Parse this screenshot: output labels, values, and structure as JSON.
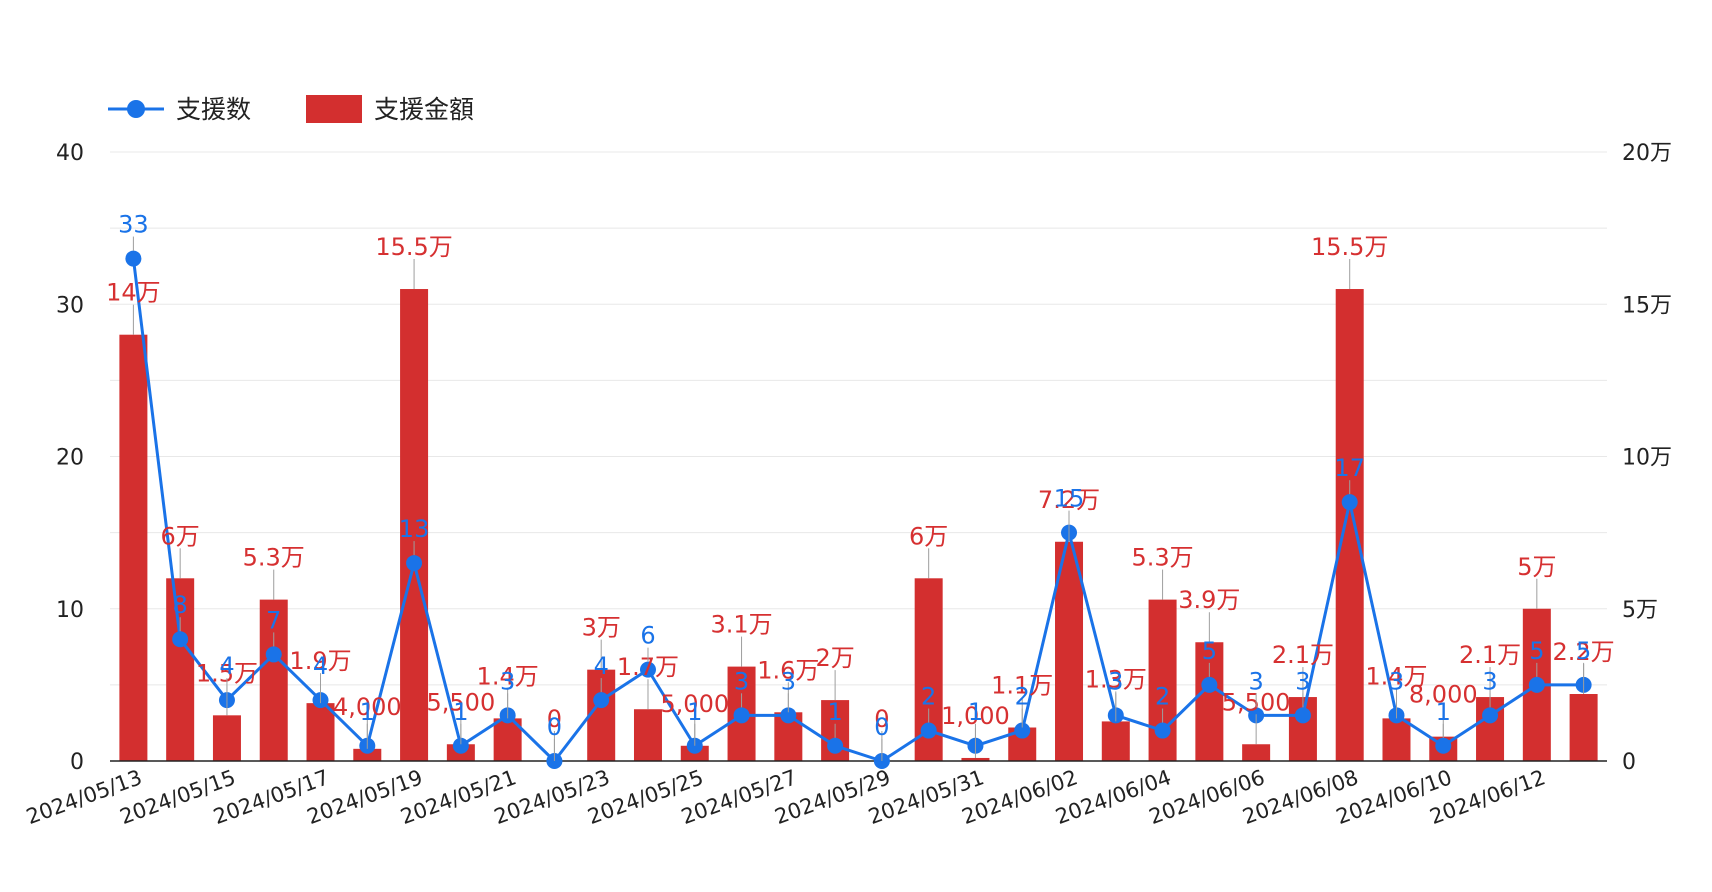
{
  "colors": {
    "count": "#1a73e8",
    "amount": "#d32f2f",
    "amount_label": "#d63031",
    "grid": "#e8e8e8",
    "axis": "#222222",
    "leader": "#9e9e9e"
  },
  "chart_data": {
    "type": "bar",
    "categories": [
      "2024/05/13",
      "2024/05/14",
      "2024/05/15",
      "2024/05/16",
      "2024/05/17",
      "2024/05/18",
      "2024/05/19",
      "2024/05/20",
      "2024/05/21",
      "2024/05/22",
      "2024/05/23",
      "2024/05/24",
      "2024/05/25",
      "2024/05/26",
      "2024/05/27",
      "2024/05/28",
      "2024/05/29",
      "2024/05/30",
      "2024/05/31",
      "2024/06/01",
      "2024/06/02",
      "2024/06/03",
      "2024/06/04",
      "2024/06/05",
      "2024/06/06",
      "2024/06/07",
      "2024/06/08",
      "2024/06/09",
      "2024/06/10",
      "2024/06/11",
      "2024/06/12",
      "2024/06/13"
    ],
    "x_tick_labels": [
      "2024/05/13",
      "2024/05/15",
      "2024/05/17",
      "2024/05/19",
      "2024/05/21",
      "2024/05/23",
      "2024/05/25",
      "2024/05/27",
      "2024/05/29",
      "2024/05/31",
      "2024/06/02",
      "2024/06/04",
      "2024/06/06",
      "2024/06/08",
      "2024/06/10",
      "2024/06/12"
    ],
    "legend_position": "top-left",
    "grid": true,
    "series": [
      {
        "name": "支援数",
        "type": "line",
        "axis": "left",
        "values": [
          33,
          8,
          4,
          7,
          4,
          1,
          13,
          1,
          3,
          0,
          4,
          6,
          1,
          3,
          3,
          1,
          0,
          2,
          1,
          2,
          15,
          3,
          2,
          5,
          3,
          3,
          17,
          3,
          1,
          3,
          5,
          5
        ],
        "labels": [
          "33",
          "8",
          "4",
          "7",
          "4",
          "1",
          "13",
          "1",
          "3",
          "0",
          "4",
          "6",
          "1",
          "3",
          "3",
          "1",
          "0",
          "2",
          "1",
          "2",
          "15",
          "3",
          "2",
          "5",
          "3",
          "3",
          "17",
          "3",
          "1",
          "3",
          "5",
          "5"
        ]
      },
      {
        "name": "支援金額",
        "type": "bar",
        "axis": "right",
        "values": [
          140000,
          60000,
          15000,
          53000,
          19000,
          4000,
          155000,
          5500,
          14000,
          0,
          30000,
          17000,
          5000,
          31000,
          16000,
          20000,
          0,
          60000,
          1000,
          11000,
          72000,
          13000,
          53000,
          39000,
          5500,
          21000,
          155000,
          14000,
          8000,
          21000,
          50000,
          22000
        ],
        "labels": [
          "14万",
          "6万",
          "1.5万",
          "5.3万",
          "1.9万",
          "4,000",
          "15.5万",
          "5,500",
          "1.4万",
          "0",
          "3万",
          "1.7万",
          "5,000",
          "3.1万",
          "1.6万",
          "2万",
          "0",
          "6万",
          "1,000",
          "1.1万",
          "7.2万",
          "1.3万",
          "5.3万",
          "3.9万",
          "5,500",
          "2.1万",
          "15.5万",
          "1.4万",
          "8,000",
          "2.1万",
          "5万",
          "2.2万"
        ]
      }
    ],
    "y_left": {
      "ylim": [
        0,
        40
      ],
      "ticks": [
        "0",
        "10",
        "20",
        "30",
        "40"
      ]
    },
    "y_right": {
      "ylim": [
        0,
        200000
      ],
      "ticks": [
        "0",
        "5万",
        "10万",
        "15万",
        "20万"
      ]
    }
  }
}
